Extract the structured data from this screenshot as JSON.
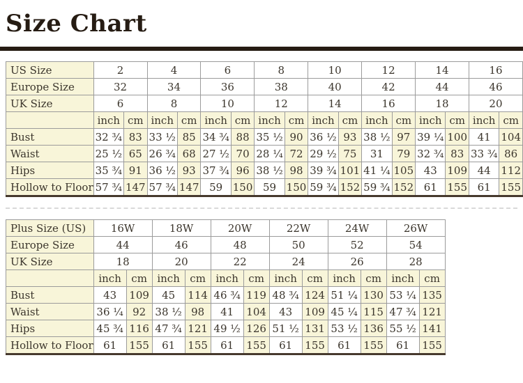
{
  "page": {
    "title": "Size Chart"
  },
  "units": [
    "inch",
    "cm"
  ],
  "tables": [
    {
      "name": "standard-size-table",
      "size_rows": [
        {
          "label": "US Size",
          "values": [
            "2",
            "4",
            "6",
            "8",
            "10",
            "12",
            "14",
            "16"
          ]
        },
        {
          "label": "Europe Size",
          "values": [
            "32",
            "34",
            "36",
            "38",
            "40",
            "42",
            "44",
            "46"
          ]
        },
        {
          "label": "UK Size",
          "values": [
            "6",
            "8",
            "10",
            "12",
            "14",
            "16",
            "18",
            "20"
          ]
        }
      ],
      "measurement_rows": [
        {
          "label": "Bust",
          "pairs": [
            [
              "32 ¾",
              "83"
            ],
            [
              "33 ½",
              "85"
            ],
            [
              "34 ¾",
              "88"
            ],
            [
              "35 ½",
              "90"
            ],
            [
              "36 ½",
              "93"
            ],
            [
              "38 ½",
              "97"
            ],
            [
              "39 ¼",
              "100"
            ],
            [
              "41",
              "104"
            ]
          ]
        },
        {
          "label": "Waist",
          "pairs": [
            [
              "25 ½",
              "65"
            ],
            [
              "26 ¾",
              "68"
            ],
            [
              "27 ½",
              "70"
            ],
            [
              "28 ¼",
              "72"
            ],
            [
              "29 ½",
              "75"
            ],
            [
              "31",
              "79"
            ],
            [
              "32 ¾",
              "83"
            ],
            [
              "33 ¾",
              "86"
            ]
          ]
        },
        {
          "label": "Hips",
          "pairs": [
            [
              "35 ¾",
              "91"
            ],
            [
              "36 ½",
              "93"
            ],
            [
              "37 ¾",
              "96"
            ],
            [
              "38 ½",
              "98"
            ],
            [
              "39 ¾",
              "101"
            ],
            [
              "41 ¼",
              "105"
            ],
            [
              "43",
              "109"
            ],
            [
              "44",
              "112"
            ]
          ]
        },
        {
          "label": "Hollow to Floor",
          "pairs": [
            [
              "57 ¾",
              "147"
            ],
            [
              "57 ¾",
              "147"
            ],
            [
              "59",
              "150"
            ],
            [
              "59",
              "150"
            ],
            [
              "59 ¾",
              "152"
            ],
            [
              "59 ¾",
              "152"
            ],
            [
              "61",
              "155"
            ],
            [
              "61",
              "155"
            ]
          ]
        }
      ]
    },
    {
      "name": "plus-size-table",
      "size_rows": [
        {
          "label": "Plus Size (US)",
          "values": [
            "16W",
            "18W",
            "20W",
            "22W",
            "24W",
            "26W"
          ]
        },
        {
          "label": "Europe Size",
          "values": [
            "44",
            "46",
            "48",
            "50",
            "52",
            "54"
          ]
        },
        {
          "label": "UK Size",
          "values": [
            "18",
            "20",
            "22",
            "24",
            "26",
            "28"
          ]
        }
      ],
      "measurement_rows": [
        {
          "label": "Bust",
          "pairs": [
            [
              "43",
              "109"
            ],
            [
              "45",
              "114"
            ],
            [
              "46 ¾",
              "119"
            ],
            [
              "48 ¾",
              "124"
            ],
            [
              "51 ¼",
              "130"
            ],
            [
              "53 ¼",
              "135"
            ]
          ]
        },
        {
          "label": "Waist",
          "pairs": [
            [
              "36 ¼",
              "92"
            ],
            [
              "38 ½",
              "98"
            ],
            [
              "41",
              "104"
            ],
            [
              "43",
              "109"
            ],
            [
              "45 ¼",
              "115"
            ],
            [
              "47 ¾",
              "121"
            ]
          ]
        },
        {
          "label": "Hips",
          "pairs": [
            [
              "45 ¾",
              "116"
            ],
            [
              "47 ¾",
              "121"
            ],
            [
              "49 ½",
              "126"
            ],
            [
              "51 ½",
              "131"
            ],
            [
              "53 ½",
              "136"
            ],
            [
              "55 ½",
              "141"
            ]
          ]
        },
        {
          "label": "Hollow to Floor",
          "pairs": [
            [
              "61",
              "155"
            ],
            [
              "61",
              "155"
            ],
            [
              "61",
              "155"
            ],
            [
              "61",
              "155"
            ],
            [
              "61",
              "155"
            ],
            [
              "61",
              "155"
            ]
          ]
        }
      ]
    }
  ]
}
